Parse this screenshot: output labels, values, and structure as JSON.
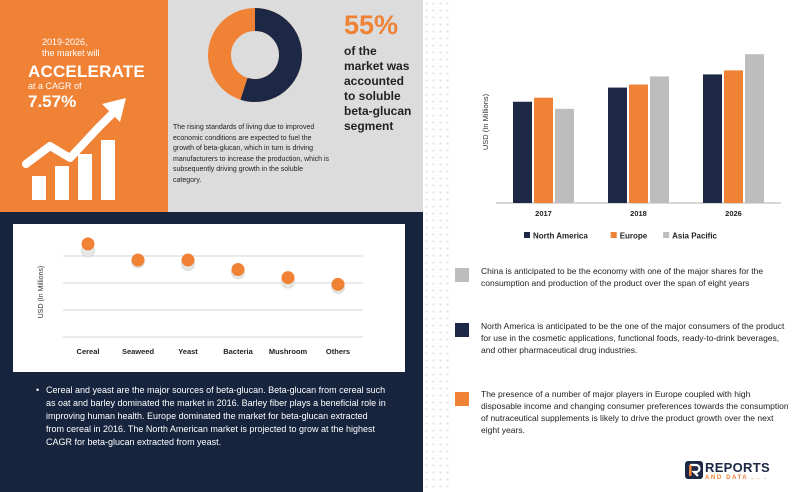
{
  "headline": {
    "years": "2019-2026,",
    "market_will": "the market will",
    "accelerate": "ACCELERATE",
    "cagr_label": "at a CAGR of",
    "cagr_value": "7.57%"
  },
  "donut": {
    "share_percent": 55,
    "percent_label": "55%",
    "text": "of the market was accounted to soluble beta-glucan segment",
    "description": "The rising standards of living due to improved economic conditions are expected to fuel the growth of beta-glucan, which in turn is driving manufacturers to increase the production, which is subsequently driving growth in the soluble category."
  },
  "chart_data": [
    {
      "type": "bar",
      "categories": [
        "2017",
        "2018",
        "2026"
      ],
      "series": [
        {
          "name": "North America",
          "values": [
            100,
            114,
            127
          ]
        },
        {
          "name": "Europe",
          "values": [
            104,
            117,
            131
          ]
        },
        {
          "name": "Asia Pacific",
          "values": [
            93,
            125,
            147
          ]
        }
      ],
      "ylabel": "USD (In Millions)",
      "ylim": [
        0,
        160
      ],
      "grid": false,
      "legend": "bottom",
      "colors": [
        "#1C2846",
        "#F08236",
        "#BDBDBD"
      ]
    },
    {
      "type": "scatter",
      "categories": [
        "Cereal",
        "Seaweed",
        "Yeast",
        "Bacteria",
        "Mushroom",
        "Others"
      ],
      "series": [
        {
          "values": [
            64,
            56,
            54,
            48,
            41,
            37
          ]
        },
        {
          "values": [
            69,
            57,
            57,
            50,
            44,
            39
          ]
        }
      ],
      "ylabel": "USD (In Millions)",
      "ylim": [
        0,
        80
      ],
      "grid": true,
      "colors": [
        "#E6E6E6",
        "#F08236"
      ]
    }
  ],
  "left_bullet": "Cereal and yeast are the major sources of beta-glucan. Beta-glucan from cereal such as oat and barley dominated the market in 2016. Barley fiber plays a beneficial role in improving human health. Europe dominated the market for beta-glucan extracted from cereal in 2016. The North American market is projected to grow at the highest CAGR for beta-glucan extracted from yeast.",
  "info": [
    {
      "color": "#BDBDBD",
      "text": "China is anticipated to be the economy with one of the major shares for the consumption and production of the product over the span of eight years"
    },
    {
      "color": "#1C2846",
      "text": "North America is anticipated to be the one of the major consumers of the product for use in the cosmetic applications, functional foods, ready-to-drink beverages, and other pharmaceutical drug industries."
    },
    {
      "color": "#F08236",
      "text": "The presence of a number of major players in Europe coupled with high disposable income and changing consumer preferences towards the consumption of nutraceutical supplements is likely to drive the product growth over the next eight years."
    }
  ],
  "logo": {
    "name": "REPORTS",
    "sub": "AND DATA . . ."
  }
}
